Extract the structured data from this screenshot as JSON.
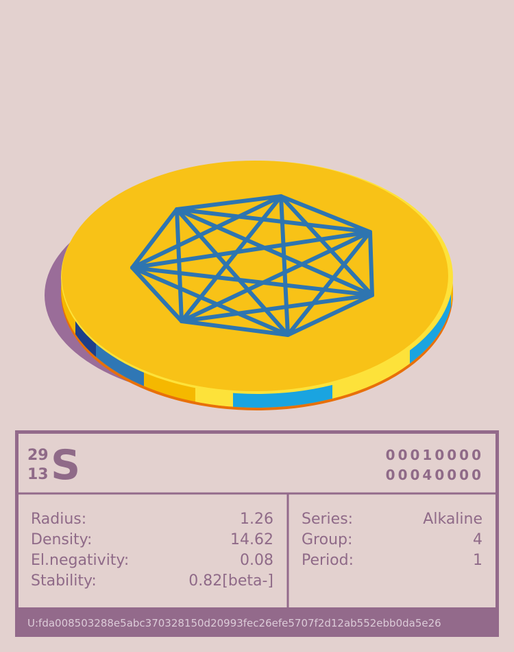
{
  "element": {
    "mass": "29",
    "number": "13",
    "symbol": "S",
    "codes": [
      "00010000",
      "00040000"
    ]
  },
  "properties_left": [
    {
      "label": "Radius:",
      "value": "1.26"
    },
    {
      "label": "Density:",
      "value": "14.62"
    },
    {
      "label": "El.negativity:",
      "value": "0.08"
    },
    {
      "label": "Stability:",
      "value": "0.82[beta-]"
    }
  ],
  "properties_right": [
    {
      "label": "Series:",
      "value": "Alkaline"
    },
    {
      "label": "Group:",
      "value": "4"
    },
    {
      "label": "Period:",
      "value": "1"
    }
  ],
  "footer": "U:fda008503288e5abc370328150d20993fec26efe5707f2d12ab552ebb0da5e26"
}
